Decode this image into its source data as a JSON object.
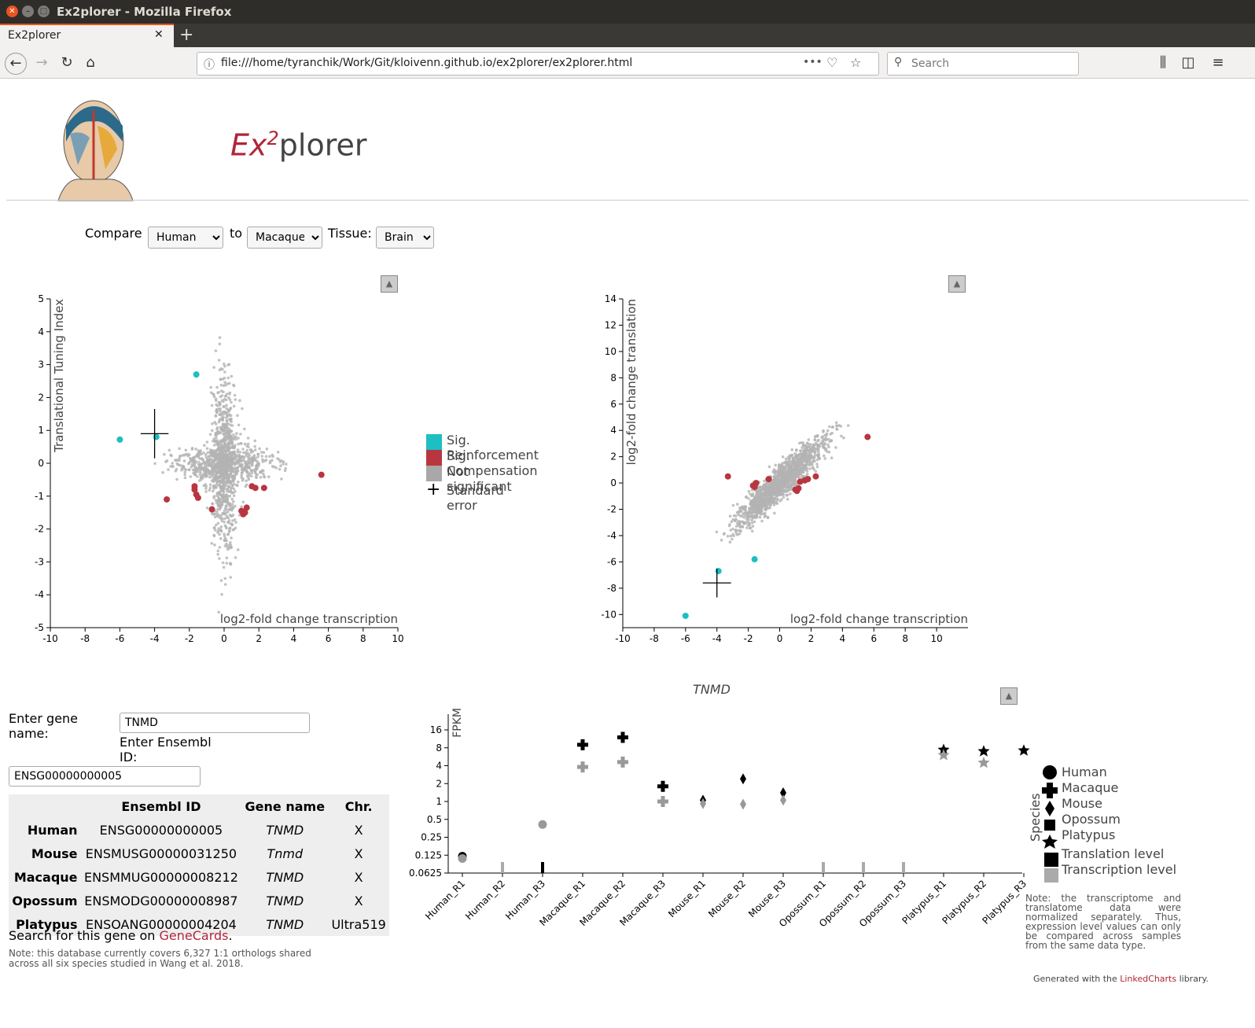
{
  "browser": {
    "window_title": "Ex2plorer - Mozilla Firefox",
    "tab_title": "Ex2plorer",
    "url": "file:///home/tyranchik/Work/Git/kloivenn.github.io/ex2plorer/ex2plorer.html",
    "search_placeholder": "Search",
    "url_actions": "•••",
    "page_actions": "☆"
  },
  "app": {
    "title_ex": "Ex",
    "title_sup": "2",
    "title_rest": "plorer"
  },
  "controls": {
    "compare_label": "Compare",
    "compare_value": "Human",
    "to_label": "to",
    "to_value": "Macaque",
    "tissue_label": "Tissue:",
    "tissue_value": "Brain"
  },
  "legend1": {
    "items": [
      "Sig. Reinforcement",
      "Sig. Compensation",
      "Not significant",
      "Standard error"
    ],
    "colors": [
      "#1dbfc3",
      "#b8363f",
      "#a8a8a8",
      "#000000"
    ]
  },
  "gene_search": {
    "gene_label": "Enter gene name:",
    "gene_value": "TNMD",
    "ensembl_label": "Enter Ensembl ID:",
    "ensembl_value": "ENSG00000000005",
    "table_headers": [
      "",
      "Ensembl ID",
      "Gene name",
      "Chr."
    ],
    "table_rows": [
      [
        "Human",
        "ENSG00000000005",
        "TNMD",
        "X"
      ],
      [
        "Mouse",
        "ENSMUSG00000031250",
        "Tnmd",
        "X"
      ],
      [
        "Macaque",
        "ENSMMUG00000008212",
        "TNMD",
        "X"
      ],
      [
        "Opossum",
        "ENSMODG00000008987",
        "TNMD",
        "X"
      ],
      [
        "Platypus",
        "ENSOANG00000004204",
        "TNMD",
        "Ultra519"
      ]
    ],
    "genecards_pre": "Search for this gene on ",
    "genecards_link": "GeneCards",
    "genecards_post": ".",
    "db_note": "Note: this database currently covers 6,327 1:1 orthologs shared across all six species studied in Wang et al. 2018."
  },
  "legend2": {
    "species_title": "Species",
    "species": [
      "Human",
      "Macaque",
      "Mouse",
      "Opossum",
      "Platypus"
    ],
    "levels": [
      "Translation level",
      "Transcription level"
    ],
    "note": "Note: the transcriptome and translatome data were normalized separately. Thus, expression level values can only be compared across samples from the same data type.",
    "footer_pre": "Generated with the ",
    "footer_link": "LinkedCharts",
    "footer_post": " library."
  },
  "chart_data": [
    {
      "type": "scatter",
      "title": "",
      "xlabel": "log2-fold change transcription",
      "ylabel": "Translational Tuning Index",
      "xlim": [
        -10,
        10
      ],
      "ylim": [
        -5,
        5
      ],
      "xticks": [
        -10,
        -8,
        -6,
        -4,
        -2,
        0,
        2,
        4,
        6,
        8,
        10
      ],
      "yticks": [
        -5,
        -4,
        -3,
        -2,
        -1,
        0,
        1,
        2,
        3,
        4,
        5
      ],
      "series": [
        {
          "name": "Sig. Reinforcement",
          "color": "#1dbfc3",
          "points": [
            [
              -6.0,
              0.72
            ],
            [
              -1.6,
              2.7
            ],
            [
              -3.9,
              0.8
            ]
          ]
        },
        {
          "name": "Sig. Compensation",
          "color": "#b8363f",
          "points": [
            [
              -3.3,
              -1.1
            ],
            [
              -1.7,
              -0.8
            ],
            [
              -1.6,
              -0.95
            ],
            [
              -1.5,
              -1.05
            ],
            [
              -0.7,
              -1.4
            ],
            [
              1.0,
              -1.45
            ],
            [
              1.1,
              -1.55
            ],
            [
              1.2,
              -1.5
            ],
            [
              1.3,
              -1.35
            ],
            [
              1.6,
              -0.7
            ],
            [
              1.8,
              -0.75
            ],
            [
              2.3,
              -0.75
            ],
            [
              5.6,
              -0.35
            ],
            [
              -1.7,
              -0.7
            ]
          ]
        },
        {
          "name": "Not significant",
          "color": "#a8a8a8"
        }
      ],
      "standard_error": {
        "x": -4.0,
        "y": 0.9,
        "x_err": 0.8,
        "y_err": 0.75
      }
    },
    {
      "type": "scatter",
      "title": "",
      "xlabel": "log2-fold change transcription",
      "ylabel": "log2-fold change translation",
      "xlim": [
        -10,
        12
      ],
      "ylim": [
        -11,
        14
      ],
      "xticks": [
        -10,
        -8,
        -6,
        -4,
        -2,
        0,
        2,
        4,
        6,
        8,
        10
      ],
      "yticks": [
        -10,
        -8,
        -6,
        -4,
        -2,
        0,
        2,
        4,
        6,
        8,
        10,
        12,
        14
      ],
      "series": [
        {
          "name": "Sig. Reinforcement",
          "color": "#1dbfc3",
          "points": [
            [
              -6.0,
              -10.1
            ],
            [
              -3.9,
              -6.7
            ],
            [
              -1.6,
              -5.8
            ]
          ]
        },
        {
          "name": "Sig. Compensation",
          "color": "#b8363f",
          "points": [
            [
              -3.3,
              0.5
            ],
            [
              -1.7,
              -0.2
            ],
            [
              -1.6,
              -0.3
            ],
            [
              -1.5,
              0.0
            ],
            [
              -0.7,
              0.3
            ],
            [
              1.0,
              -0.5
            ],
            [
              1.1,
              -0.6
            ],
            [
              1.2,
              -0.4
            ],
            [
              1.3,
              0.1
            ],
            [
              1.6,
              0.2
            ],
            [
              1.8,
              0.3
            ],
            [
              2.3,
              0.5
            ],
            [
              5.6,
              3.5
            ]
          ]
        },
        {
          "name": "Not significant",
          "color": "#a8a8a8"
        }
      ],
      "standard_error": {
        "x": -4.0,
        "y": -7.6,
        "x_err": 0.9,
        "y_err": 1.1
      }
    },
    {
      "type": "scatter",
      "title": "TNMD",
      "xlabel": "",
      "ylabel": "FPKM",
      "y_scale": "log2",
      "ylim": [
        0.0625,
        16
      ],
      "yticks": [
        16,
        8,
        4,
        2,
        1,
        0.5,
        0.25,
        0.125,
        0.0625
      ],
      "categories": [
        "Human_R1",
        "Human_R2",
        "Human_R3",
        "Macaque_R1",
        "Macaque_R2",
        "Macaque_R3",
        "Mouse_R1",
        "Mouse_R2",
        "Mouse_R3",
        "Opossum_R1",
        "Opossum_R2",
        "Opossum_R3",
        "Platypus_R1",
        "Platypus_R2",
        "Platypus_R3"
      ],
      "species_of_category": [
        "Human",
        "Human",
        "Human",
        "Macaque",
        "Macaque",
        "Macaque",
        "Mouse",
        "Mouse",
        "Mouse",
        "Opossum",
        "Opossum",
        "Opossum",
        "Platypus",
        "Platypus",
        "Platypus"
      ],
      "series": [
        {
          "name": "Translation level",
          "color": "#000000",
          "values": [
            0.12,
            0.0625,
            0.0625,
            9.0,
            12.0,
            1.8,
            1.05,
            2.4,
            1.4,
            0.0625,
            0.0625,
            0.0625,
            7.6,
            7.2,
            7.4
          ]
        },
        {
          "name": "Transcription level",
          "color": "#999999",
          "values": [
            0.11,
            0.0625,
            0.41,
            3.8,
            4.6,
            1.0,
            0.92,
            0.9,
            1.05,
            0.0625,
            0.0625,
            0.0625,
            6.2,
            4.6,
            null
          ]
        }
      ]
    }
  ]
}
